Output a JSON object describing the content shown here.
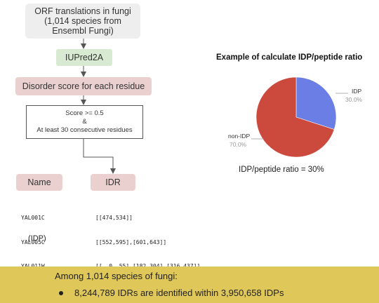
{
  "flow": {
    "source_line1": "ORF translations in fungi",
    "source_line2": "(1,014 species from",
    "source_line3": "Ensembl Fungi)",
    "tool": "IUPred2A",
    "score_step": "Disorder score for each residue",
    "criteria_line1": "Score >= 0.5",
    "criteria_line2": "&",
    "criteria_line3": "At least 30 consecutive residues"
  },
  "table": {
    "name_header": "Name",
    "idr_header": "IDR",
    "names": [
      "YAL001C",
      "YAL005C",
      "YAL011W",
      "..."
    ],
    "idrs": [
      "[[474,534]]",
      "[[552,595],[601,643]]",
      "[[  0, 55],[182,304],[316,437]]",
      "..."
    ],
    "name_note": "(IDP)"
  },
  "pie": {
    "title": "Example of calculate IDP/peptide ratio",
    "ratio_text": "IDP/peptide ratio = 30%",
    "slices": [
      {
        "label": "IDP",
        "percent_text": "30.0%",
        "value": 30.0,
        "color": "#6a7ee6"
      },
      {
        "label": "non-IDP",
        "percent_text": "70.0%",
        "value": 70.0,
        "color": "#cc4a3d"
      }
    ]
  },
  "summary": {
    "heading": "Among 1,014 species of fungi:",
    "bullet": "8,244,789 IDRs are identified within 3,950,658 IDPs"
  }
}
